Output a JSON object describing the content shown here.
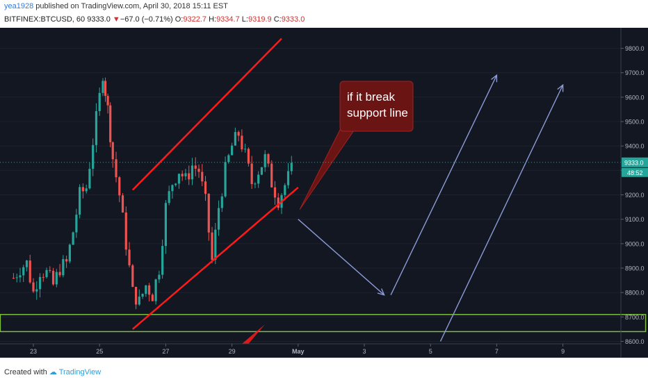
{
  "header": {
    "user": "yea1928",
    "published_text": "published on TradingView.com, April 30, 2018 15:11 EST",
    "symbol": "BITFINEX:BTCUSD, 60",
    "last": "9333.0",
    "change_arrow": "▼",
    "change": "−67.0 (−0.71%)",
    "o_label": "O:",
    "o_value": "9322.7",
    "h_label": "H:",
    "h_value": "9334.7",
    "l_label": "L:",
    "l_value": "9319.9",
    "c_label": "C:",
    "c_value": "9333.0"
  },
  "footer": {
    "created_with": "Created with",
    "brand": "TradingView"
  },
  "annotation": {
    "callout_line1": "if it break",
    "callout_line2": "support line"
  },
  "colors": {
    "background": "#131722",
    "up": "#26a69a",
    "down": "#ef5350",
    "trendline": "#ff1a1a",
    "projection": "#8c9bd6",
    "zone": "#7fbf3f",
    "callout_fill": "#6b1414",
    "price_label_bg": "#26a69a"
  },
  "chart_data": {
    "type": "candlestick",
    "symbol": "BITFINEX:BTCUSD",
    "interval": "60",
    "current_price": "9333.0",
    "countdown": "48:52",
    "y_axis": {
      "ticks": [
        "9800.0",
        "9700.0",
        "9600.0",
        "9500.0",
        "9400.0",
        "9300.0",
        "9200.0",
        "9100.0",
        "9000.0",
        "8900.0",
        "8800.0",
        "8700.0",
        "8600.0"
      ],
      "ylim": [
        8590,
        9850
      ]
    },
    "x_axis": {
      "tick_labels": [
        "23",
        "25",
        "27",
        "29",
        "May",
        "3",
        "5",
        "7",
        "9"
      ]
    },
    "close_path": [
      {
        "x": 22.4,
        "y": 8860
      },
      {
        "x": 22.6,
        "y": 8900
      },
      {
        "x": 22.8,
        "y": 8920
      },
      {
        "x": 23.0,
        "y": 8800
      },
      {
        "x": 23.2,
        "y": 8890
      },
      {
        "x": 23.4,
        "y": 8880
      },
      {
        "x": 23.6,
        "y": 8830
      },
      {
        "x": 23.8,
        "y": 8900
      },
      {
        "x": 24.0,
        "y": 8920
      },
      {
        "x": 24.2,
        "y": 9050
      },
      {
        "x": 24.4,
        "y": 9200
      },
      {
        "x": 24.6,
        "y": 9230
      },
      {
        "x": 24.8,
        "y": 9420
      },
      {
        "x": 25.0,
        "y": 9600
      },
      {
        "x": 25.1,
        "y": 9700
      },
      {
        "x": 25.25,
        "y": 9550
      },
      {
        "x": 25.4,
        "y": 9350
      },
      {
        "x": 25.6,
        "y": 9200
      },
      {
        "x": 25.8,
        "y": 9000
      },
      {
        "x": 26.0,
        "y": 8800
      },
      {
        "x": 26.2,
        "y": 8760
      },
      {
        "x": 26.4,
        "y": 8830
      },
      {
        "x": 26.6,
        "y": 8790
      },
      {
        "x": 26.8,
        "y": 8900
      },
      {
        "x": 27.0,
        "y": 9150
      },
      {
        "x": 27.2,
        "y": 9250
      },
      {
        "x": 27.4,
        "y": 9300
      },
      {
        "x": 27.6,
        "y": 9260
      },
      {
        "x": 27.8,
        "y": 9320
      },
      {
        "x": 28.0,
        "y": 9300
      },
      {
        "x": 28.2,
        "y": 9170
      },
      {
        "x": 28.4,
        "y": 8930
      },
      {
        "x": 28.6,
        "y": 9150
      },
      {
        "x": 28.8,
        "y": 9300
      },
      {
        "x": 29.0,
        "y": 9400
      },
      {
        "x": 29.2,
        "y": 9450
      },
      {
        "x": 29.4,
        "y": 9360
      },
      {
        "x": 29.6,
        "y": 9250
      },
      {
        "x": 29.8,
        "y": 9300
      },
      {
        "x": 30.0,
        "y": 9350
      },
      {
        "x": 30.2,
        "y": 9250
      },
      {
        "x": 30.4,
        "y": 9180
      },
      {
        "x": 30.6,
        "y": 9240
      },
      {
        "x": 30.8,
        "y": 9300
      },
      {
        "x": 30.9,
        "y": 9333
      }
    ],
    "channel": {
      "upper": [
        {
          "x": 26.0,
          "y": 9220
        },
        {
          "x": 30.5,
          "y": 9840
        }
      ],
      "lower": [
        {
          "x": 26.0,
          "y": 8650
        },
        {
          "x": 31.0,
          "y": 9230
        }
      ]
    },
    "support_zone": {
      "low": 8640,
      "high": 8710,
      "x_start": 22.0,
      "x_end": 41.5
    },
    "projections": [
      {
        "from": {
          "x": 31.0,
          "y": 9100
        },
        "to": {
          "x": 33.6,
          "y": 8790
        }
      },
      {
        "from": {
          "x": 33.8,
          "y": 8790
        },
        "to": {
          "x": 37.0,
          "y": 9690
        }
      },
      {
        "from": {
          "x": 35.3,
          "y": 8600
        },
        "to": {
          "x": 39.0,
          "y": 9650
        }
      }
    ]
  }
}
